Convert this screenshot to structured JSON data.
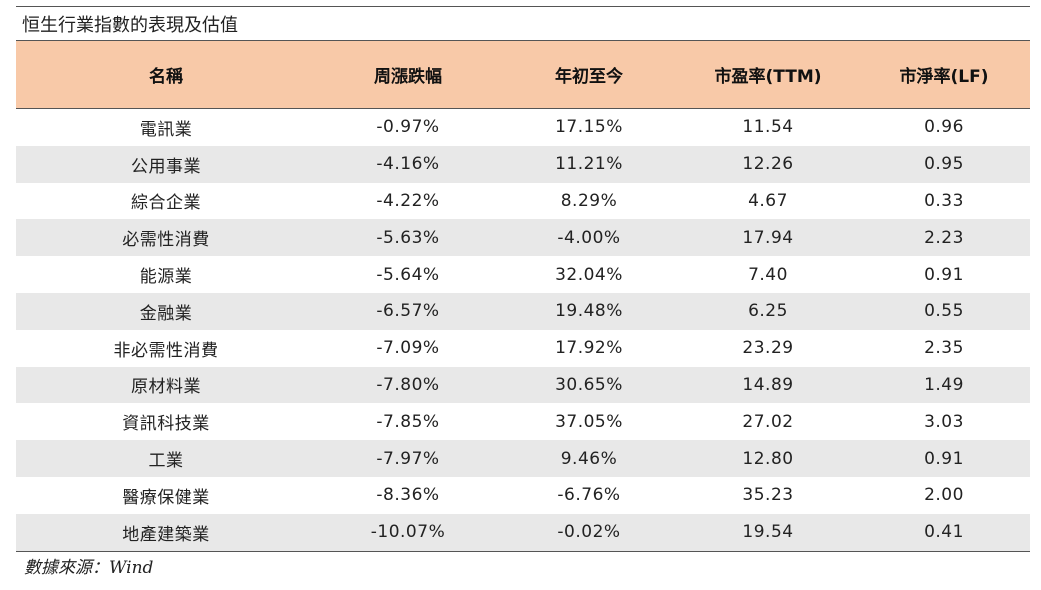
{
  "title": "恒生行業指數的表現及估值",
  "table": {
    "headers": [
      "名稱",
      "周漲跌幅",
      "年初至今",
      "市盈率(TTM)",
      "市淨率(LF)"
    ],
    "rows": [
      {
        "name": "電訊業",
        "weekly": "-0.97%",
        "ytd": "17.15%",
        "pe": "11.54",
        "pb": "0.96"
      },
      {
        "name": "公用事業",
        "weekly": "-4.16%",
        "ytd": "11.21%",
        "pe": "12.26",
        "pb": "0.95"
      },
      {
        "name": "綜合企業",
        "weekly": "-4.22%",
        "ytd": "8.29%",
        "pe": "4.67",
        "pb": "0.33"
      },
      {
        "name": "必需性消費",
        "weekly": "-5.63%",
        "ytd": "-4.00%",
        "pe": "17.94",
        "pb": "2.23"
      },
      {
        "name": "能源業",
        "weekly": "-5.64%",
        "ytd": "32.04%",
        "pe": "7.40",
        "pb": "0.91"
      },
      {
        "name": "金融業",
        "weekly": "-6.57%",
        "ytd": "19.48%",
        "pe": "6.25",
        "pb": "0.55"
      },
      {
        "name": "非必需性消費",
        "weekly": "-7.09%",
        "ytd": "17.92%",
        "pe": "23.29",
        "pb": "2.35"
      },
      {
        "name": "原材料業",
        "weekly": "-7.80%",
        "ytd": "30.65%",
        "pe": "14.89",
        "pb": "1.49"
      },
      {
        "name": "資訊科技業",
        "weekly": "-7.85%",
        "ytd": "37.05%",
        "pe": "27.02",
        "pb": "3.03"
      },
      {
        "name": "工業",
        "weekly": "-7.97%",
        "ytd": "9.46%",
        "pe": "12.80",
        "pb": "0.91"
      },
      {
        "name": "醫療保健業",
        "weekly": "-8.36%",
        "ytd": "-6.76%",
        "pe": "35.23",
        "pb": "2.00"
      },
      {
        "name": "地產建築業",
        "weekly": "-10.07%",
        "ytd": "-0.02%",
        "pe": "19.54",
        "pb": "0.41"
      }
    ]
  },
  "source": "數據來源：Wind",
  "colors": {
    "header_bg": "#f8c9a8",
    "stripe_bg": "#e8e8e8"
  }
}
